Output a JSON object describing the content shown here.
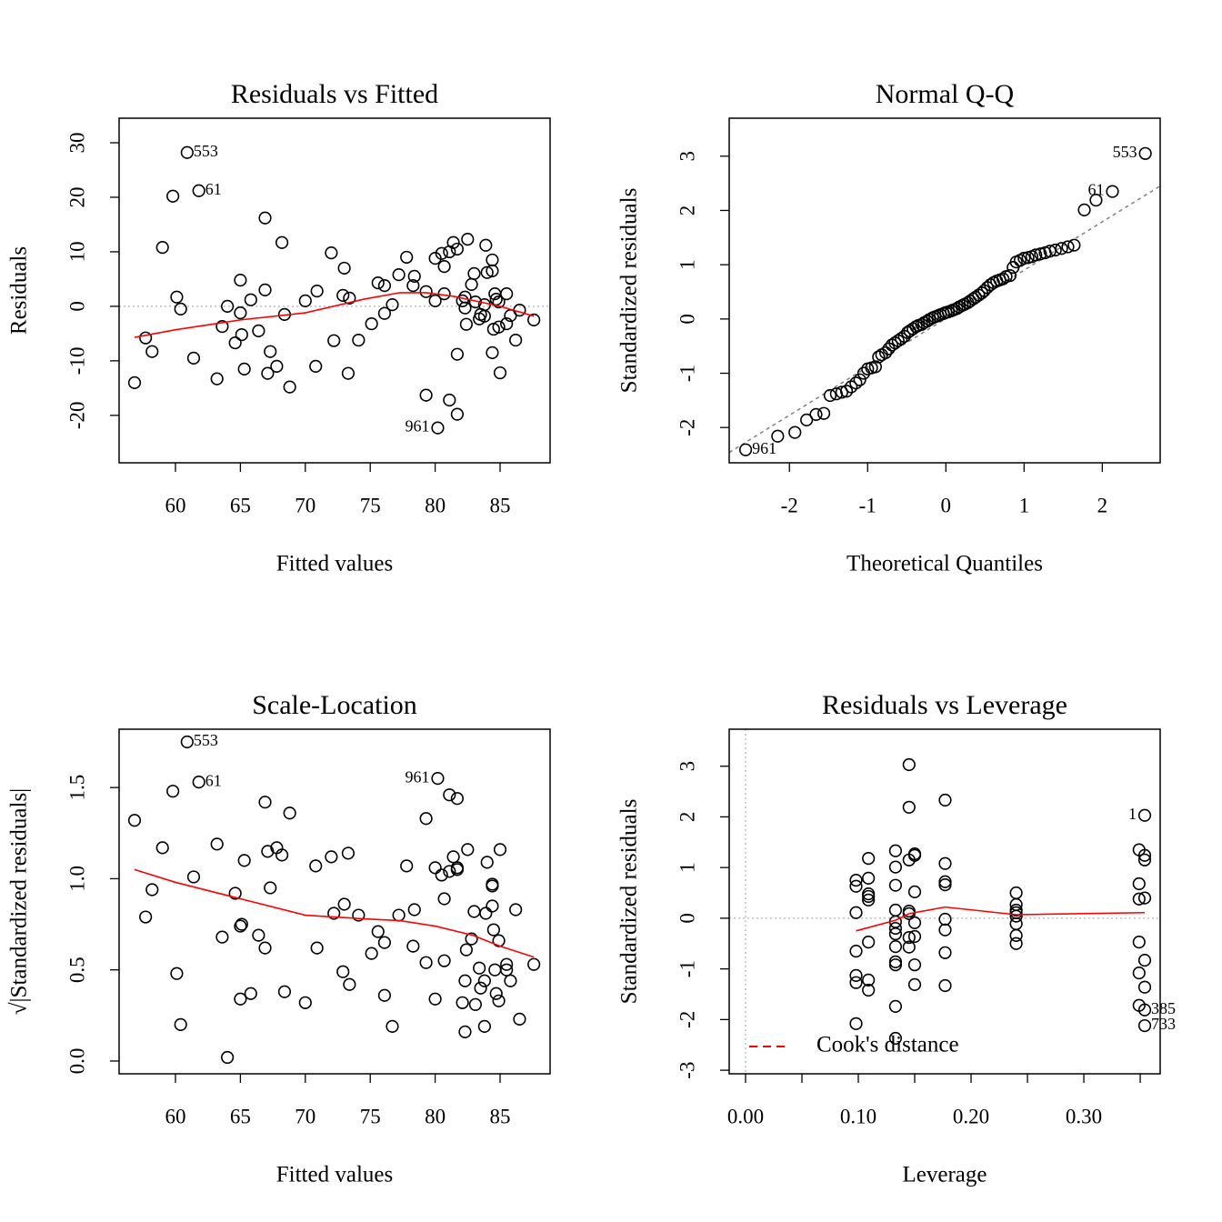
{
  "chart_data": [
    {
      "type": "scatter",
      "title": "Residuals vs Fitted",
      "x_label": "Fitted values",
      "y_label": "Residuals",
      "xlim": [
        55.66,
        88.85
      ],
      "ylim": [
        -28.7,
        34.5
      ],
      "xticks": [
        60,
        65,
        70,
        75,
        80,
        85
      ],
      "yticks": [
        -20,
        -10,
        0,
        10,
        20,
        30
      ],
      "marker_color": "#000000",
      "x": [
        56.85,
        57.7,
        58.2,
        59.0,
        59.8,
        60.1,
        60.4,
        61.4,
        63.2,
        63.6,
        64.0,
        64.6,
        65.0,
        65.0,
        65.1,
        65.3,
        65.8,
        66.4,
        66.9,
        66.9,
        67.1,
        67.3,
        67.8,
        68.2,
        68.4,
        68.8,
        70.0,
        70.8,
        70.9,
        72.0,
        72.2,
        72.9,
        73.0,
        73.3,
        73.4,
        74.1,
        75.1,
        75.6,
        76.1,
        76.1,
        76.7,
        77.2,
        77.8,
        78.3,
        78.4,
        79.3,
        79.3,
        80.0,
        80.0,
        80.5,
        80.7,
        80.7,
        81.1,
        81.1,
        81.4,
        81.7,
        81.7,
        81.7,
        82.1,
        82.3,
        82.3,
        82.4,
        82.5,
        82.8,
        83.0,
        83.1,
        83.4,
        83.5,
        83.8,
        83.8,
        83.9,
        84.0,
        84.4,
        84.4,
        84.4,
        84.5,
        84.6,
        84.7,
        84.9,
        84.9,
        85.0,
        85.5,
        85.5,
        85.8,
        86.2,
        86.5,
        87.6
      ],
      "y": [
        -14.0,
        -5.8,
        -8.3,
        10.8,
        20.2,
        1.7,
        -0.5,
        -9.5,
        -13.3,
        -3.7,
        0,
        -6.7,
        4.8,
        -1.2,
        -5.2,
        -11.5,
        1.2,
        -4.5,
        16.2,
        3.0,
        -12.3,
        -8.3,
        -11,
        11.7,
        -1.5,
        -14.8,
        1.0,
        -11,
        2.8,
        9.8,
        -6.3,
        2.0,
        7.0,
        -12.3,
        1.5,
        -6.2,
        -3.2,
        4.3,
        3.8,
        -1.3,
        0.3,
        5.8,
        9.0,
        3.8,
        5.5,
        2.7,
        -16.3,
        1.0,
        8.8,
        9.7,
        7.3,
        2.3,
        -17.2,
        10.0,
        11.7,
        10.5,
        -19.8,
        -8.8,
        1.0,
        1.7,
        -0.3,
        -3.3,
        12.3,
        4.0,
        6.0,
        0.8,
        -2.3,
        -1.5,
        0.3,
        -1.8,
        11.2,
        6.2,
        8.5,
        6.5,
        -8.5,
        -4.2,
        2.3,
        1.3,
        0.8,
        -3.8,
        -12.2,
        -3.2,
        2.3,
        -1.7,
        -6.2,
        -0.7,
        -2.5
      ],
      "labeled_points": [
        {
          "label": "553",
          "x": 60.9,
          "y": 28.2
        },
        {
          "label": "61",
          "x": 61.8,
          "y": 21.2
        },
        {
          "label": "961",
          "x": 80.2,
          "y": -22.3
        }
      ],
      "smooth": {
        "color": "#ff0000",
        "x": [
          56.85,
          60,
          65,
          70,
          74.5,
          77.3,
          79.3,
          81.5,
          85,
          87.6
        ],
        "y": [
          -5.7,
          -4.3,
          -2.5,
          -1.2,
          1.3,
          2.5,
          2.5,
          1.8,
          0,
          -1.8
        ]
      },
      "hline": 0,
      "ref_color": "#bebebe"
    },
    {
      "type": "scatter",
      "title": "Normal Q-Q",
      "x_label": "Theoretical Quantiles",
      "y_label": "Standardized residuals",
      "xlim": [
        -2.77,
        2.74
      ],
      "ylim": [
        -2.65,
        3.7
      ],
      "xticks": [
        -2,
        -1,
        0,
        1,
        2
      ],
      "yticks": [
        -2,
        -1,
        0,
        1,
        2,
        3
      ],
      "marker_color": "#000000",
      "x": [
        -2.15,
        -1.93,
        -1.78,
        -1.66,
        -1.56,
        -1.48,
        -1.4,
        -1.33,
        -1.27,
        -1.21,
        -1.15,
        -1.1,
        -1.05,
        -1.0,
        -0.95,
        -0.9,
        -0.86,
        -0.82,
        -0.77,
        -0.73,
        -0.69,
        -0.65,
        -0.61,
        -0.57,
        -0.53,
        -0.49,
        -0.46,
        -0.42,
        -0.38,
        -0.35,
        -0.31,
        -0.28,
        -0.24,
        -0.21,
        -0.17,
        -0.14,
        -0.1,
        -0.07,
        -0.03,
        0,
        0.03,
        0.07,
        0.1,
        0.14,
        0.17,
        0.21,
        0.24,
        0.28,
        0.31,
        0.35,
        0.38,
        0.42,
        0.46,
        0.49,
        0.53,
        0.57,
        0.61,
        0.65,
        0.69,
        0.73,
        0.77,
        0.82,
        0.86,
        0.9,
        0.95,
        1.0,
        1.05,
        1.1,
        1.15,
        1.21,
        1.27,
        1.33,
        1.4,
        1.48,
        1.56,
        1.64,
        1.77,
        1.92
      ],
      "y": [
        -2.16,
        -2.09,
        -1.86,
        -1.76,
        -1.74,
        -1.41,
        -1.38,
        -1.35,
        -1.33,
        -1.25,
        -1.18,
        -1.12,
        -1.0,
        -0.92,
        -0.9,
        -0.88,
        -0.7,
        -0.66,
        -0.62,
        -0.55,
        -0.48,
        -0.44,
        -0.4,
        -0.36,
        -0.32,
        -0.25,
        -0.22,
        -0.18,
        -0.14,
        -0.12,
        -0.1,
        -0.07,
        -0.04,
        -0.01,
        0.02,
        0.04,
        0.06,
        0.08,
        0.1,
        0.12,
        0.13,
        0.15,
        0.17,
        0.19,
        0.22,
        0.25,
        0.27,
        0.3,
        0.33,
        0.37,
        0.4,
        0.44,
        0.48,
        0.52,
        0.58,
        0.63,
        0.67,
        0.7,
        0.72,
        0.74,
        0.78,
        0.8,
        0.95,
        1.05,
        1.08,
        1.12,
        1.13,
        1.15,
        1.18,
        1.2,
        1.22,
        1.25,
        1.27,
        1.3,
        1.33,
        1.36,
        2.01,
        2.19
      ],
      "labeled_points": [
        {
          "label": "553",
          "x": 2.55,
          "y": 3.05
        },
        {
          "label": "61",
          "x": 2.13,
          "y": 2.35
        },
        {
          "label": "961",
          "x": -2.56,
          "y": -2.41
        }
      ],
      "qqline": {
        "x": [
          -2.77,
          2.74
        ],
        "y": [
          -2.46,
          2.45
        ]
      },
      "ref_color": "#808080"
    },
    {
      "type": "scatter",
      "title": "Scale-Location",
      "x_label": "Fitted values",
      "y_label": "√|Standardized residuals|",
      "xlim": [
        55.66,
        88.85
      ],
      "ylim": [
        -0.07,
        1.82
      ],
      "xticks": [
        60,
        65,
        70,
        75,
        80,
        85
      ],
      "yticks": [
        {
          "value": 0,
          "label": "0.0"
        },
        0.5,
        {
          "value": 1,
          "label": "1.0"
        },
        1.5
      ],
      "marker_color": "#000000",
      "x": [
        56.85,
        57.7,
        58.2,
        59.0,
        59.8,
        60.1,
        60.4,
        61.4,
        63.2,
        63.6,
        64.0,
        64.6,
        65.0,
        65.0,
        65.1,
        65.3,
        65.8,
        66.4,
        66.9,
        66.9,
        67.1,
        67.3,
        67.8,
        68.2,
        68.4,
        68.8,
        70.0,
        70.8,
        70.9,
        72.0,
        72.2,
        72.9,
        73.0,
        73.3,
        73.4,
        74.1,
        75.1,
        75.6,
        76.1,
        76.1,
        76.7,
        77.2,
        77.8,
        78.3,
        78.4,
        79.3,
        79.3,
        80.0,
        80.0,
        80.5,
        80.7,
        80.7,
        81.1,
        81.1,
        81.4,
        81.7,
        81.7,
        81.7,
        82.1,
        82.3,
        82.3,
        82.4,
        82.5,
        82.8,
        83.0,
        83.1,
        83.4,
        83.5,
        83.8,
        83.8,
        83.9,
        84.0,
        84.4,
        84.4,
        84.4,
        84.5,
        84.6,
        84.7,
        84.9,
        84.9,
        85.0,
        85.5,
        85.5,
        85.8,
        86.2,
        86.5,
        87.6
      ],
      "y": [
        1.32,
        0.79,
        0.94,
        1.17,
        1.48,
        0.48,
        0.2,
        1.01,
        1.19,
        0.68,
        0.02,
        0.92,
        0.74,
        0.34,
        0.75,
        1.1,
        0.37,
        0.69,
        1.42,
        0.62,
        1.15,
        0.95,
        1.17,
        1.13,
        0.38,
        1.36,
        0.32,
        1.07,
        0.62,
        1.12,
        0.81,
        0.49,
        0.86,
        1.14,
        0.42,
        0.8,
        0.59,
        0.71,
        0.36,
        0.65,
        0.19,
        0.8,
        1.07,
        0.63,
        0.83,
        0.54,
        1.33,
        0.34,
        1.06,
        1.02,
        0.89,
        0.55,
        1.46,
        1.04,
        1.12,
        1.06,
        1.44,
        1.05,
        0.32,
        0.16,
        0.44,
        0.61,
        1.16,
        0.67,
        0.82,
        0.31,
        0.51,
        0.4,
        0.19,
        0.44,
        0.81,
        1.09,
        0.97,
        0.96,
        0.85,
        0.72,
        0.5,
        0.37,
        0.66,
        0.33,
        1.16,
        0.5,
        0.53,
        0.44,
        0.83,
        0.23,
        0.53
      ],
      "labeled_points": [
        {
          "label": "553",
          "x": 60.9,
          "y": 1.75
        },
        {
          "label": "61",
          "x": 61.8,
          "y": 1.53
        },
        {
          "label": "961",
          "x": 80.2,
          "y": 1.55
        }
      ],
      "smooth": {
        "color": "#ff0000",
        "x": [
          56.85,
          60,
          65,
          70,
          74.5,
          77.3,
          80,
          82.9,
          85,
          87.6
        ],
        "y": [
          1.05,
          0.98,
          0.89,
          0.8,
          0.78,
          0.77,
          0.74,
          0.69,
          0.63,
          0.57
        ]
      }
    },
    {
      "type": "scatter",
      "title": "Residuals vs Leverage",
      "x_label": "Leverage",
      "y_label": "Standardized residuals",
      "xlim": [
        -0.0145,
        0.3677
      ],
      "ylim": [
        -3.07,
        3.73
      ],
      "xticks": [
        {
          "value": 0,
          "label": "0.00"
        },
        {
          "value": 0.05,
          "label": null
        },
        {
          "value": 0.1,
          "label": "0.10"
        },
        {
          "value": 0.15,
          "label": null
        },
        {
          "value": 0.2,
          "label": "0.20"
        },
        {
          "value": 0.25,
          "label": null
        },
        {
          "value": 0.3,
          "label": "0.30"
        },
        {
          "value": 0.35,
          "label": null
        }
      ],
      "yticks": [
        -3,
        -2,
        -1,
        0,
        1,
        2,
        3
      ],
      "marker_color": "#000000",
      "x": [
        0.098,
        0.098,
        0.098,
        0.098,
        0.098,
        0.098,
        0.098,
        0.109,
        0.109,
        0.109,
        0.109,
        0.109,
        0.109,
        0.109,
        0.109,
        0.133,
        0.133,
        0.133,
        0.133,
        0.133,
        0.133,
        0.133,
        0.133,
        0.133,
        0.133,
        0.133,
        0.133,
        0.145,
        0.145,
        0.145,
        0.145,
        0.145,
        0.145,
        0.145,
        0.15,
        0.15,
        0.15,
        0.15,
        0.15,
        0.15,
        0.15,
        0.177,
        0.177,
        0.177,
        0.177,
        0.177,
        0.177,
        0.177,
        0.177,
        0.24,
        0.24,
        0.24,
        0.24,
        0.24,
        0.24,
        0.24,
        0.24,
        0.349,
        0.349,
        0.349,
        0.349,
        0.349,
        0.349,
        0.354,
        0.354,
        0.354,
        0.354,
        0.354
      ],
      "y": [
        0.75,
        0.63,
        0.11,
        -0.65,
        -1.13,
        -1.27,
        -2.08,
        1.18,
        0.79,
        0.48,
        0.43,
        0.36,
        -0.47,
        -1.22,
        -1.42,
        1.33,
        1.01,
        0.65,
        0.16,
        -0.07,
        -0.2,
        -0.31,
        -0.56,
        -0.86,
        -0.92,
        -1.74,
        -2.37,
        3.03,
        2.19,
        1.15,
        0.14,
        0.09,
        -0.38,
        -0.57,
        1.27,
        1.24,
        0.52,
        -0.09,
        -0.36,
        -0.92,
        -1.31,
        2.33,
        1.08,
        0.72,
        0.66,
        -0.02,
        -0.23,
        -0.68,
        -1.33,
        0.5,
        0.27,
        0.16,
        0.11,
        0.04,
        -0.11,
        -0.34,
        -0.5,
        1.35,
        0.68,
        0.38,
        -0.47,
        -1.08,
        -1.72,
        1.24,
        1.15,
        0.4,
        -0.83,
        -1.36
      ],
      "labeled_points": [
        {
          "label": "1",
          "x": 0.354,
          "y": 2.03
        },
        {
          "label": "385",
          "x": 0.354,
          "y": -1.81
        },
        {
          "label": "733",
          "x": 0.354,
          "y": -2.12
        }
      ],
      "smooth": {
        "color": "#ff0000",
        "x": [
          0.098,
          0.133,
          0.145,
          0.177,
          0.24,
          0.354
        ],
        "y": [
          -0.25,
          -0.04,
          0.09,
          0.22,
          0.07,
          0.11
        ]
      },
      "hline": 0,
      "vline": 0,
      "ref_color": "#bebebe",
      "legend": {
        "label": "Cook's distance",
        "color": "#ff0000",
        "corner": "bottom-left"
      }
    }
  ]
}
